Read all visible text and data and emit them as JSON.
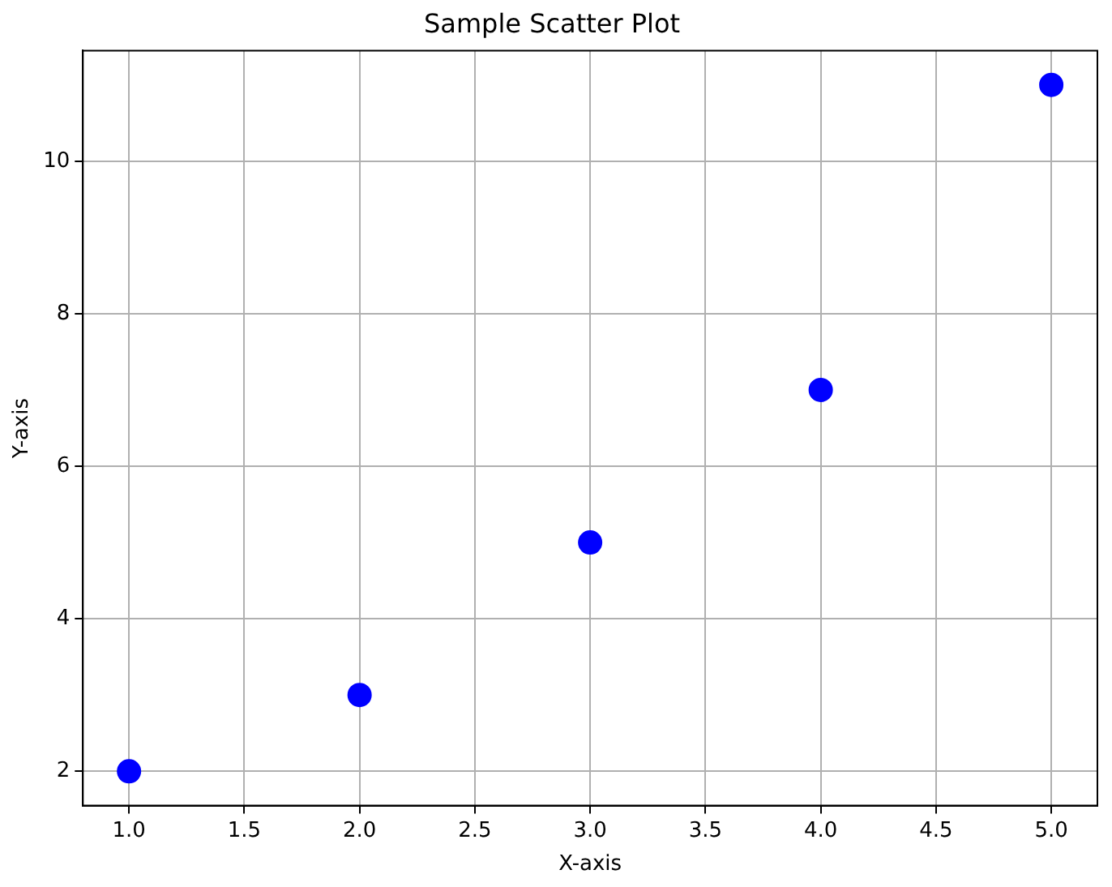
{
  "chart_data": {
    "type": "scatter",
    "title": "Sample Scatter Plot",
    "xlabel": "X-axis",
    "ylabel": "Y-axis",
    "x": [
      1,
      2,
      3,
      4,
      5
    ],
    "series": [
      {
        "color": "#0000ff",
        "values": [
          2,
          3,
          5,
          7,
          11
        ]
      }
    ],
    "xlim": [
      0.8,
      5.2
    ],
    "ylim": [
      1.55,
      11.45
    ],
    "xticks": [
      {
        "value": 1,
        "label": "1.0"
      },
      {
        "value": 1.5,
        "label": "1.5"
      },
      {
        "value": 2,
        "label": "2.0"
      },
      {
        "value": 2.5,
        "label": "2.5"
      },
      {
        "value": 3,
        "label": "3.0"
      },
      {
        "value": 3.5,
        "label": "3.5"
      },
      {
        "value": 4,
        "label": "4.0"
      },
      {
        "value": 4.5,
        "label": "4.5"
      },
      {
        "value": 5,
        "label": "5.0"
      }
    ],
    "yticks": [
      2,
      4,
      6,
      8,
      10
    ],
    "grid": true,
    "marker": "circle"
  }
}
